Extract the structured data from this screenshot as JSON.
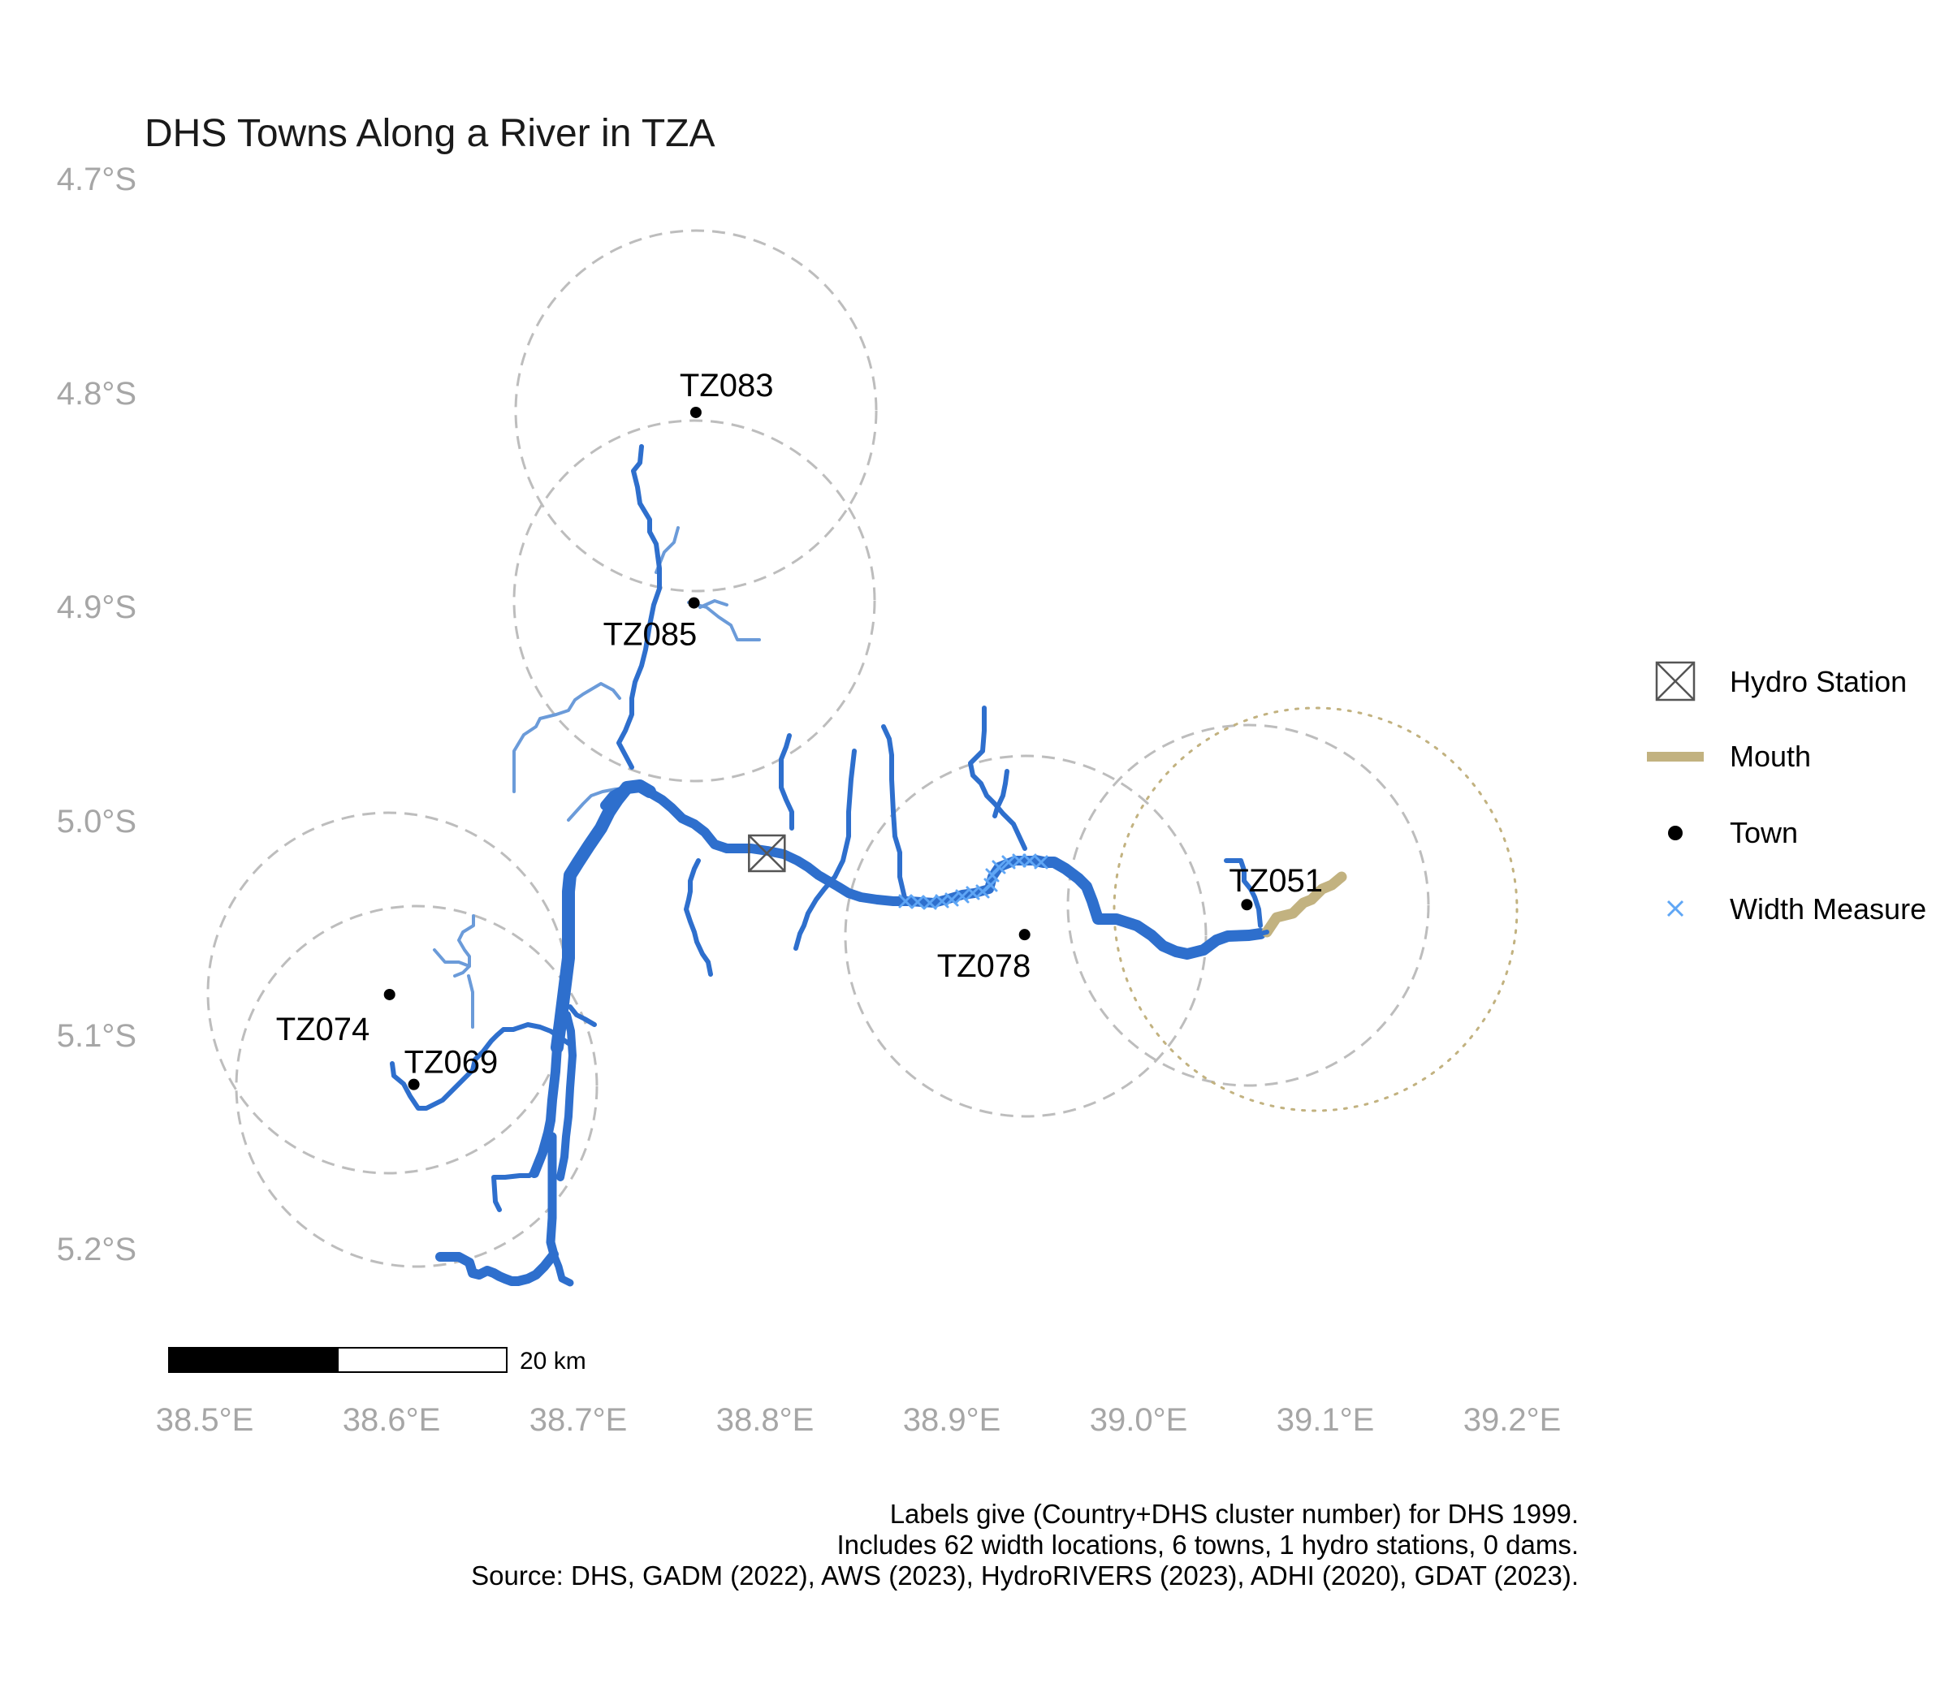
{
  "title": "DHS Towns Along a River in TZA",
  "axes": {
    "lat_labels": [
      "4.7°S",
      "4.8°S",
      "4.9°S",
      "5.0°S",
      "5.1°S",
      "5.2°S"
    ],
    "lon_labels": [
      "38.5°E",
      "38.6°E",
      "38.7°E",
      "38.8°E",
      "38.9°E",
      "39.0°E",
      "39.1°E",
      "39.2°E"
    ]
  },
  "towns": [
    {
      "label": "TZ083",
      "lon": 38.763,
      "lat": -4.81
    },
    {
      "label": "TZ085",
      "lon": 38.762,
      "lat": -4.899
    },
    {
      "label": "TZ074",
      "lon": 38.599,
      "lat": -5.082
    },
    {
      "label": "TZ069",
      "lon": 38.612,
      "lat": -5.124
    },
    {
      "label": "TZ078",
      "lon": 38.939,
      "lat": -5.054
    },
    {
      "label": "TZ051",
      "lon": 39.058,
      "lat": -5.04
    }
  ],
  "hydro_station": {
    "lon": 38.801,
    "lat": -5.016
  },
  "legend": {
    "hydro_station": "Hydro Station",
    "mouth": "Mouth",
    "town": "Town",
    "width_measure": "Width Measure"
  },
  "scale_bar": {
    "label": "20 km"
  },
  "caption": {
    "line1": "Labels give (Country+DHS cluster number) for DHS 1999.",
    "line2": "Includes 62 width locations, 6 towns, 1 hydro stations, 0 dams.",
    "line3": "Source: DHS, GADM (2022), AWS (2023), HydroRIVERS (2023), ADHI (2020), GDAT (2023)."
  },
  "colors": {
    "river_main": "#2e6fcd",
    "river_minor": "#6b9bd9",
    "width_measure": "#5fa6f5",
    "mouth": "#c2b280",
    "buffer": "#bdbdbd",
    "axis_text": "#a6a6a6"
  }
}
